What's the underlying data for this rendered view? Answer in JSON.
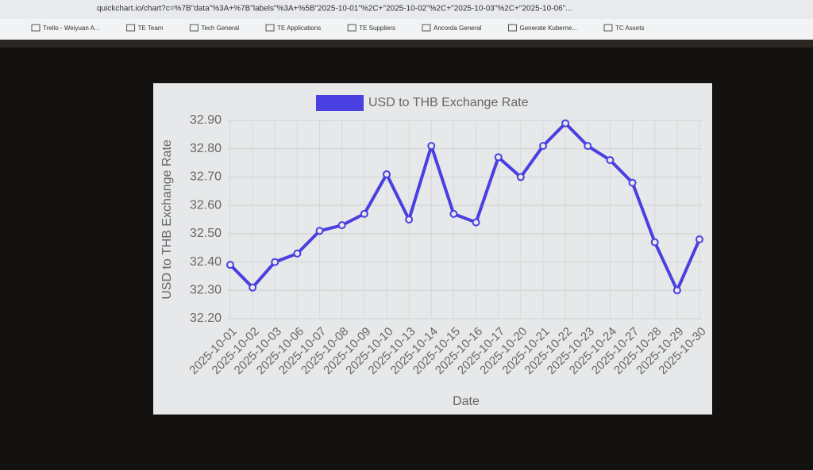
{
  "browser": {
    "url": "quickchart.io/chart?c=%7B\"data\"%3A+%7B\"labels\"%3A+%5B\"2025-10-01\"%2C+\"2025-10-02\"%2C+\"2025-10-03\"%2C+\"2025-10-06\"...",
    "bookmarks": [
      "Trello - Weiyuan A...",
      "TE Team",
      "Tech General",
      "TE Applications",
      "TE Suppliers",
      "Ancorda General",
      "Generate Kuberne...",
      "TC Assets"
    ]
  },
  "chart_data": {
    "type": "line",
    "xlabel": "Date",
    "ylabel": "USD to THB Exchange Rate",
    "categories": [
      "2025-10-01",
      "2025-10-02",
      "2025-10-03",
      "2025-10-06",
      "2025-10-07",
      "2025-10-08",
      "2025-10-09",
      "2025-10-10",
      "2025-10-13",
      "2025-10-14",
      "2025-10-15",
      "2025-10-16",
      "2025-10-17",
      "2025-10-20",
      "2025-10-21",
      "2025-10-22",
      "2025-10-23",
      "2025-10-24",
      "2025-10-27",
      "2025-10-28",
      "2025-10-29",
      "2025-10-30"
    ],
    "series": [
      {
        "name": "USD to THB Exchange Rate",
        "color": "#4a3fe0",
        "values": [
          32.39,
          32.31,
          32.4,
          32.43,
          32.51,
          32.53,
          32.57,
          32.71,
          32.55,
          32.81,
          32.57,
          32.54,
          32.77,
          32.7,
          32.81,
          32.89,
          32.81,
          32.76,
          32.68,
          32.47,
          32.3,
          32.48
        ]
      }
    ],
    "ylim": [
      32.2,
      32.9
    ],
    "yticks": [
      {
        "value": 32.2,
        "label": "32.20"
      },
      {
        "value": 32.3,
        "label": "32.30"
      },
      {
        "value": 32.4,
        "label": "32.40"
      },
      {
        "value": 32.5,
        "label": "32.50"
      },
      {
        "value": 32.6,
        "label": "32.60"
      },
      {
        "value": 32.7,
        "label": "32.70"
      },
      {
        "value": 32.8,
        "label": "32.80"
      },
      {
        "value": 32.9,
        "label": "32.90"
      }
    ],
    "grid": true,
    "legend": "top"
  }
}
